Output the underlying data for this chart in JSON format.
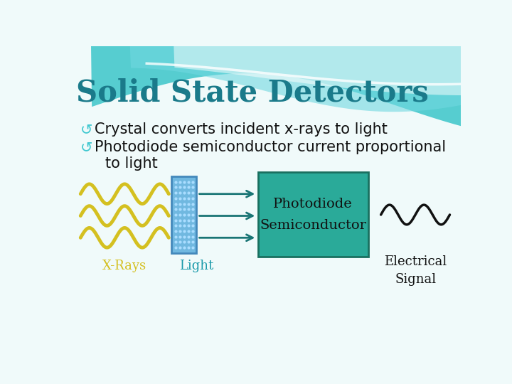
{
  "title": "Solid State Detectors",
  "title_color": "#1a7a8a",
  "title_fontsize": 30,
  "bullet_fontsize": 15,
  "bullet_color": "#111111",
  "bullet_symbol_color": "#40c8d0",
  "bg_color": "#f0fafa",
  "xray_color": "#d4c020",
  "crystal_facecolor": "#70b8e0",
  "crystal_edgecolor": "#4488bb",
  "arrow_color": "#1a7575",
  "box_facecolor": "#2aaa99",
  "box_edgecolor": "#1a7060",
  "box_text": "Photodiode\nSemiconductor",
  "box_text_color": "#111111",
  "signal_color": "#111111",
  "label_xray": "X-Rays",
  "label_xray_color": "#d4c020",
  "label_light": "Light",
  "label_light_color": "#1a9aaa",
  "label_signal_color": "#111111",
  "label_fontsize": 13,
  "header_teal1": "#45c8cc",
  "header_teal2": "#70d8e0",
  "header_white": "#e8f8fa",
  "wave_top_color": "#ffffff"
}
